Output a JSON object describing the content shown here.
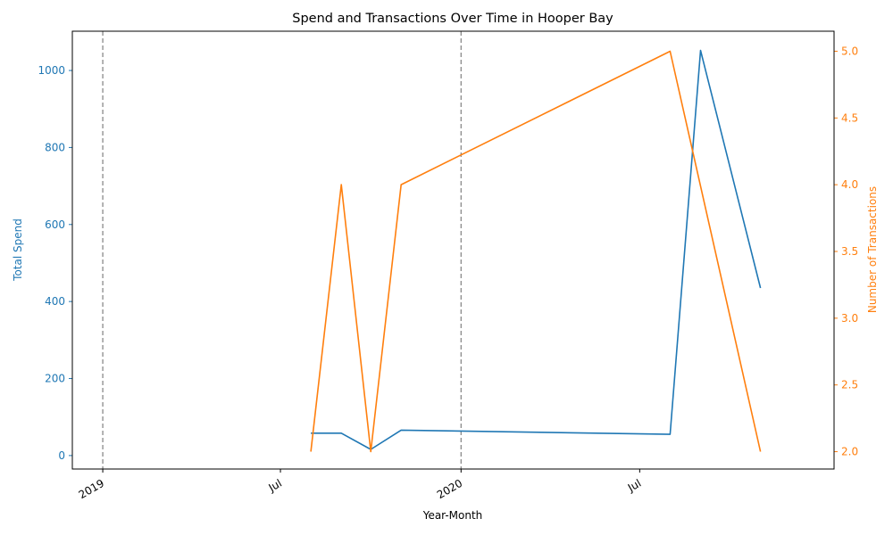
{
  "chart_data": {
    "type": "line",
    "title": "Spend and Transactions Over Time in Hooper Bay",
    "xlabel": "Year-Month",
    "x_tick_labels": [
      "2019",
      "Jul",
      "2020",
      "Jul"
    ],
    "x_ticks": [
      "2019-01-01",
      "2019-07-01",
      "2020-01-01",
      "2020-07-01"
    ],
    "xlim": [
      "2018-12-01",
      "2021-01-15"
    ],
    "vlines": [
      "2019-01-01",
      "2020-01-01"
    ],
    "colors": {
      "spend": "#1f77b4",
      "transactions": "#ff7f0e",
      "vline": "#808080"
    },
    "left_axis": {
      "ylabel": "Total Spend",
      "ylim": [
        -35,
        1102
      ],
      "ticks": [
        0,
        200,
        400,
        600,
        800,
        1000
      ]
    },
    "right_axis": {
      "ylabel": "Number of Transactions",
      "ylim": [
        1.87,
        5.15
      ],
      "ticks": [
        2.0,
        2.5,
        3.0,
        3.5,
        4.0,
        4.5,
        5.0
      ],
      "tick_labels": [
        "2.0",
        "2.5",
        "3.0",
        "3.5",
        "4.0",
        "4.5",
        "5.0"
      ]
    },
    "series": [
      {
        "key": "spend",
        "axis": "left",
        "x": [
          "2019-08-01",
          "2019-09-01",
          "2019-10-01",
          "2019-11-01",
          "2020-08-01",
          "2020-09-01",
          "2020-11-01"
        ],
        "y": [
          58,
          58,
          16,
          66,
          55,
          1052,
          435
        ]
      },
      {
        "key": "transactions",
        "axis": "right",
        "x": [
          "2019-08-01",
          "2019-09-01",
          "2019-10-01",
          "2019-11-01",
          "2020-08-01",
          "2020-11-01"
        ],
        "y": [
          2,
          4,
          2,
          4,
          5,
          2
        ]
      }
    ]
  }
}
